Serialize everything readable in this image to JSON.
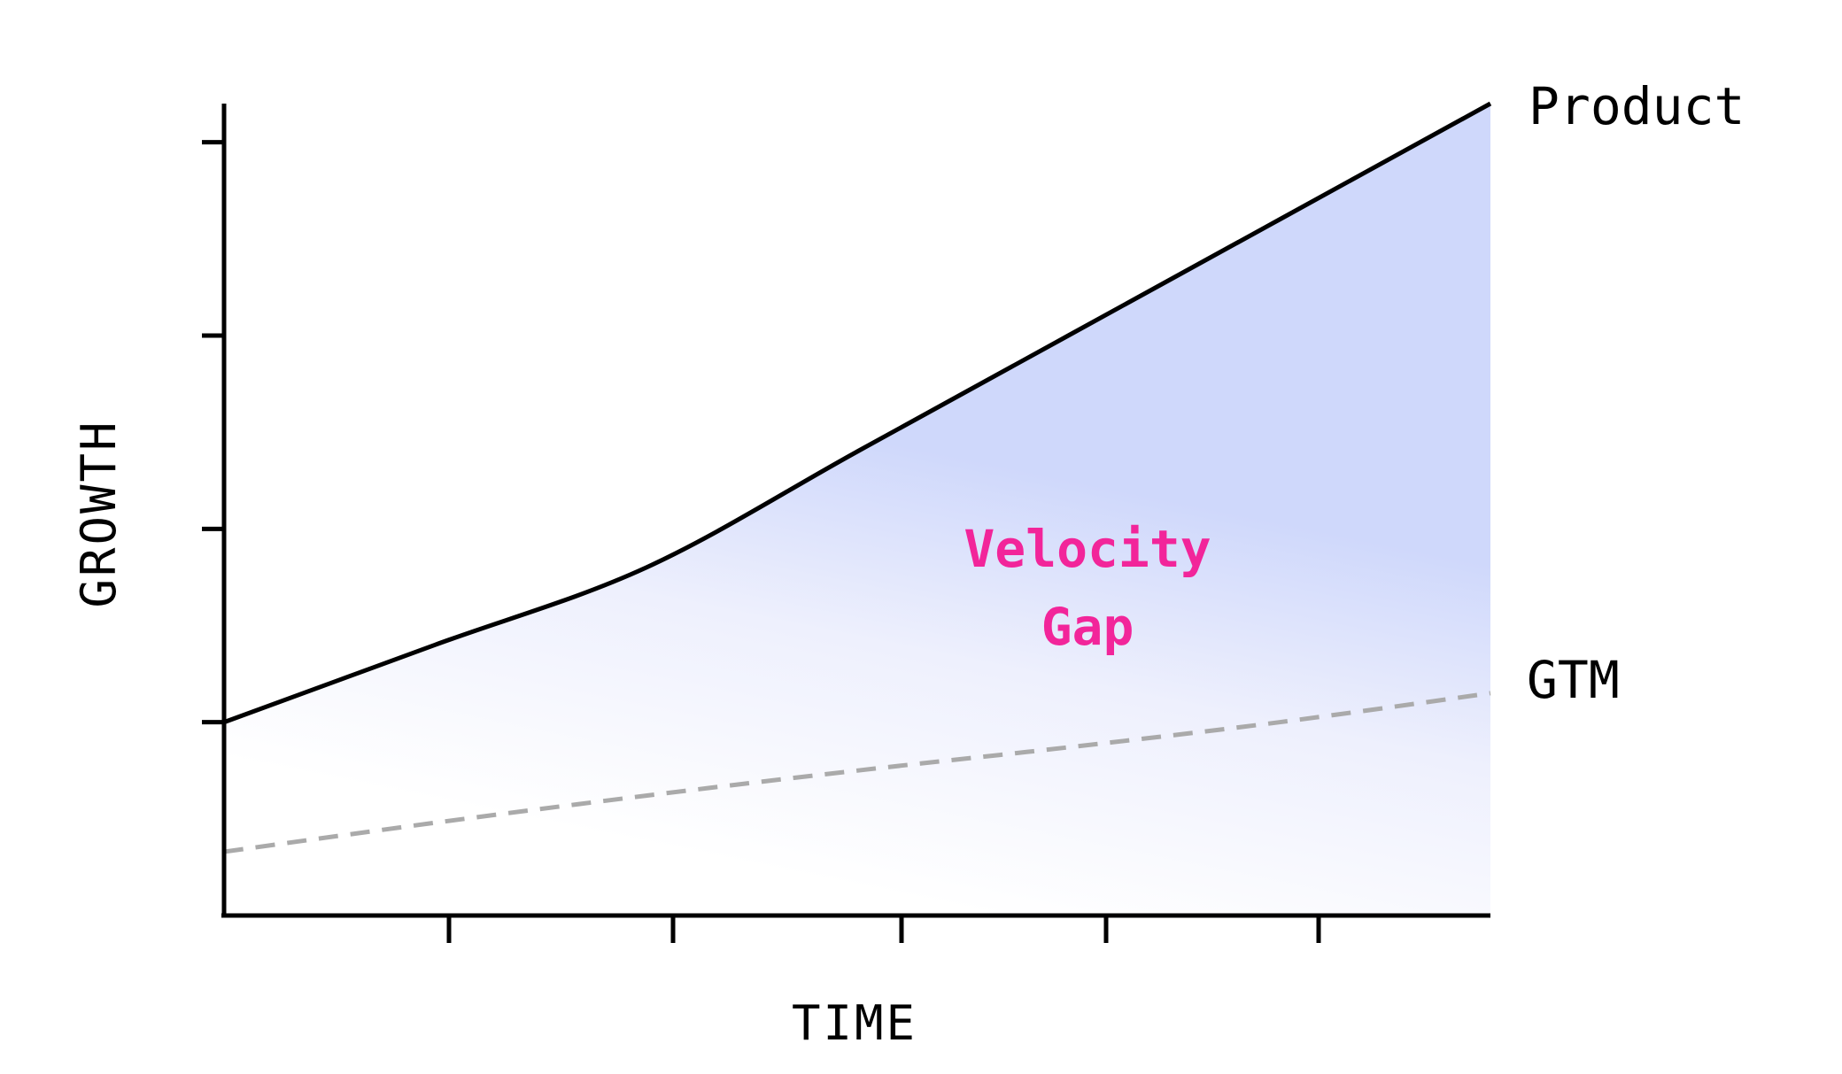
{
  "chart_data": {
    "type": "line",
    "title": "",
    "xlabel": "TIME",
    "ylabel": "GROWTH",
    "xlim": [
      0,
      6
    ],
    "ylim": [
      0,
      4.2
    ],
    "x_ticks": [
      1,
      2,
      3,
      4,
      5
    ],
    "y_ticks": [
      1,
      2,
      3,
      4
    ],
    "grid": false,
    "legend": "none",
    "series": [
      {
        "name": "Product",
        "style": "solid",
        "color": "#000000",
        "x": [
          0,
          1,
          2,
          3,
          4,
          5,
          6
        ],
        "y": [
          1.0,
          1.4,
          1.8,
          2.4,
          3.0,
          3.6,
          4.2
        ]
      },
      {
        "name": "GTM",
        "style": "dashed",
        "color": "#aaaaaa",
        "x": [
          0,
          1,
          2,
          3,
          4,
          5,
          6
        ],
        "y": [
          0.33,
          0.48,
          0.62,
          0.75,
          0.87,
          1.0,
          1.15
        ]
      }
    ],
    "annotations": [
      {
        "text": "Velocity\nGap",
        "color": "#f2259a",
        "x": 4.1,
        "y": 1.85
      }
    ],
    "fill_between": {
      "series": [
        "Product",
        "GTM"
      ],
      "color": "#c5cffb"
    }
  }
}
